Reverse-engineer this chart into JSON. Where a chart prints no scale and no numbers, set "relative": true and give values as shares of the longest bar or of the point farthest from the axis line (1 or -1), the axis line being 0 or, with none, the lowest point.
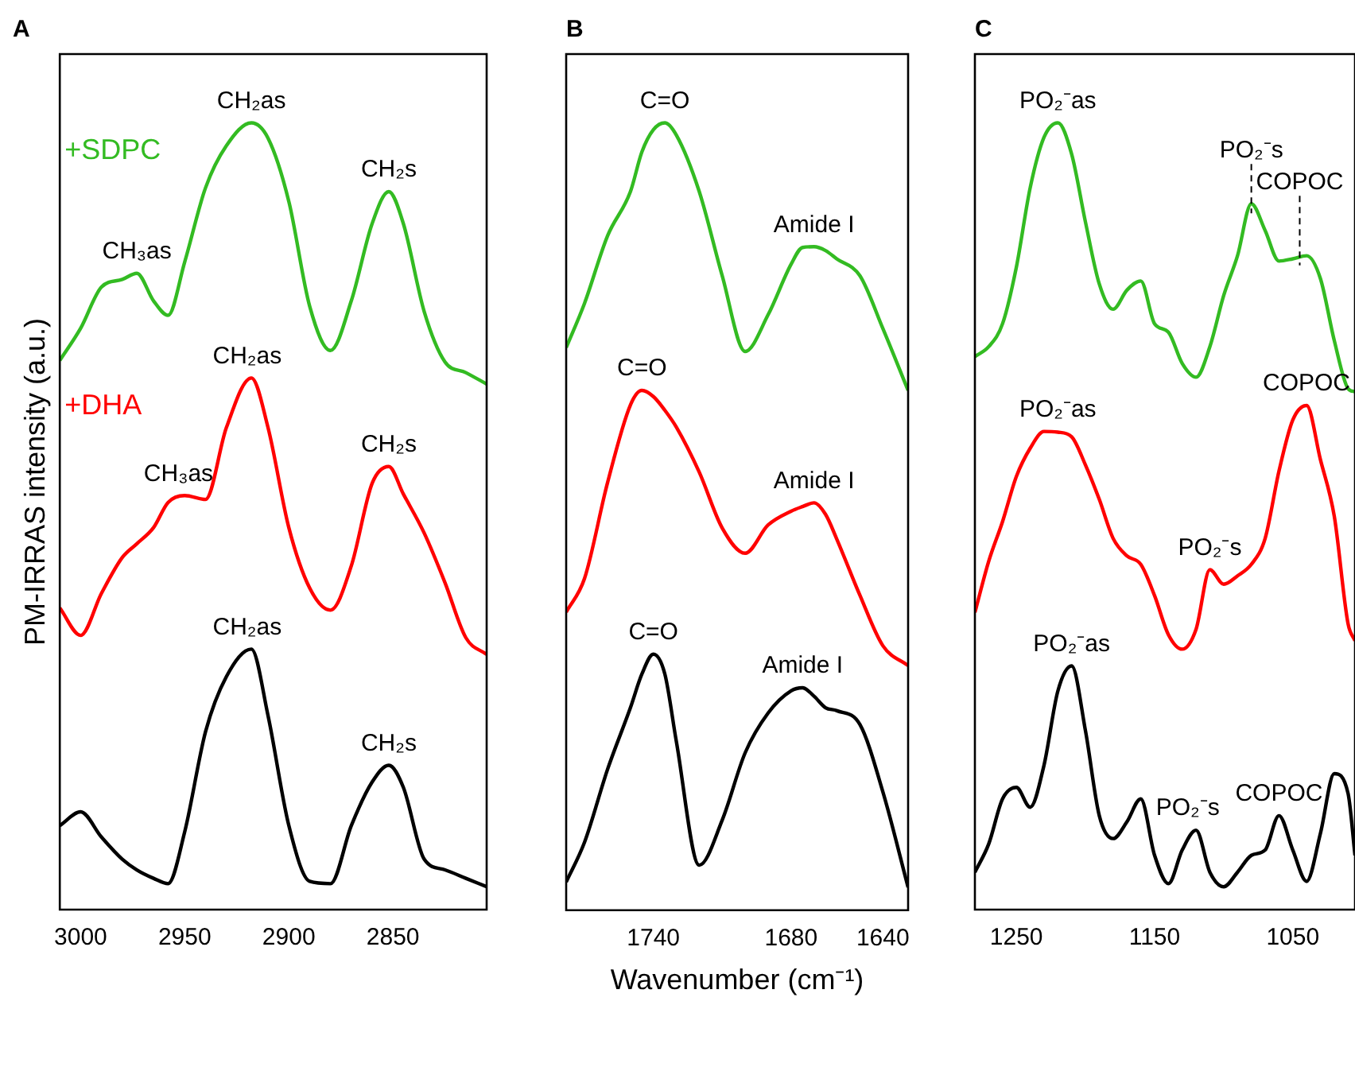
{
  "chart_data": [
    {
      "type": "line",
      "title": "A",
      "ylabel": "PM-IRRAS intensity (a.u.)",
      "relative": true,
      "xlim": [
        3010,
        2805
      ],
      "xticks": [
        3000,
        2950,
        2900,
        2850
      ],
      "x": [
        3010,
        3000,
        2990,
        2980,
        2973,
        2965,
        2958,
        2950,
        2940,
        2930,
        2918,
        2910,
        2900,
        2890,
        2880,
        2870,
        2860,
        2852,
        2845,
        2835,
        2825,
        2815,
        2805
      ],
      "series": [
        {
          "name": "+SDPC",
          "color": "#33bb22",
          "values": [
            0.689,
            0.731,
            0.785,
            0.795,
            0.803,
            0.767,
            0.748,
            0.818,
            0.915,
            0.97,
            1.0,
            0.98,
            0.897,
            0.76,
            0.702,
            0.767,
            0.868,
            0.91,
            0.868,
            0.753,
            0.687,
            0.673,
            0.658
          ]
        },
        {
          "name": "+DHA",
          "color": "#ff0000",
          "values": [
            0.365,
            0.329,
            0.384,
            0.431,
            0.449,
            0.47,
            0.503,
            0.512,
            0.507,
            0.601,
            0.666,
            0.601,
            0.47,
            0.391,
            0.362,
            0.42,
            0.528,
            0.55,
            0.514,
            0.463,
            0.398,
            0.326,
            0.304
          ]
        },
        {
          "color": "#000000",
          "values": [
            0.08,
            0.098,
            0.065,
            0.036,
            0.022,
            0.011,
            0.004,
            0.072,
            0.203,
            0.275,
            0.311,
            0.224,
            0.08,
            0.007,
            0.004,
            0.08,
            0.137,
            0.159,
            0.13,
            0.036,
            0.022,
            0.011,
            0
          ]
        }
      ],
      "annotations": [
        {
          "text": "CH₃as",
          "x": 2973,
          "y": 0.803
        },
        {
          "text": "CH₂as",
          "x": 2918,
          "y": 1.0
        },
        {
          "text": "CH₂s",
          "x": 2852,
          "y": 0.91
        },
        {
          "text": "CH₃as",
          "x": 2953,
          "y": 0.512
        },
        {
          "text": "CH₂as",
          "x": 2920,
          "y": 0.666
        },
        {
          "text": "CH₂s",
          "x": 2852,
          "y": 0.55
        },
        {
          "text": "CH₂as",
          "x": 2920,
          "y": 0.311
        },
        {
          "text": "CH₂s",
          "x": 2852,
          "y": 0.159
        }
      ]
    },
    {
      "type": "line",
      "title": "B",
      "xlabel": "Wavenumber (cm⁻¹)",
      "relative": true,
      "xlim": [
        1778,
        1629
      ],
      "xticks": [
        1740,
        1680,
        1640
      ],
      "x": [
        1778,
        1770,
        1760,
        1750,
        1745,
        1740,
        1735,
        1730,
        1720,
        1710,
        1700,
        1690,
        1680,
        1675,
        1670,
        1665,
        1660,
        1650,
        1640,
        1629
      ],
      "series": [
        {
          "color": "#33bb22",
          "values": [
            0.706,
            0.764,
            0.852,
            0.91,
            0.962,
            0.991,
            1.0,
            0.984,
            0.91,
            0.8,
            0.701,
            0.749,
            0.815,
            0.837,
            0.838,
            0.833,
            0.822,
            0.8,
            0.731,
            0.65
          ]
        },
        {
          "color": "#ff0000",
          "values": [
            0.36,
            0.404,
            0.529,
            0.631,
            0.65,
            0.642,
            0.624,
            0.602,
            0.543,
            0.47,
            0.437,
            0.474,
            0.492,
            0.498,
            0.503,
            0.488,
            0.455,
            0.382,
            0.316,
            0.29
          ]
        },
        {
          "color": "#000000",
          "values": [
            0.007,
            0.059,
            0.154,
            0.235,
            0.279,
            0.305,
            0.279,
            0.191,
            0.029,
            0.088,
            0.176,
            0.228,
            0.257,
            0.261,
            0.25,
            0.235,
            0.231,
            0.213,
            0.125,
            0
          ]
        }
      ],
      "annotations": [
        {
          "text": "C=O",
          "x": 1735,
          "y": 1.0
        },
        {
          "text": "Amide I",
          "x": 1670,
          "y": 0.838
        },
        {
          "text": "C=O",
          "x": 1745,
          "y": 0.65
        },
        {
          "text": "Amide I",
          "x": 1670,
          "y": 0.503
        },
        {
          "text": "C=O",
          "x": 1740,
          "y": 0.305
        },
        {
          "text": "Amide I",
          "x": 1675,
          "y": 0.261
        }
      ]
    },
    {
      "type": "line",
      "title": "C",
      "relative": true,
      "xlim": [
        1280,
        1005
      ],
      "xticks": [
        1250,
        1150,
        1050
      ],
      "x": [
        1280,
        1270,
        1260,
        1250,
        1240,
        1230,
        1220,
        1210,
        1200,
        1190,
        1180,
        1170,
        1160,
        1150,
        1140,
        1130,
        1120,
        1110,
        1100,
        1090,
        1080,
        1070,
        1060,
        1050,
        1040,
        1030,
        1020,
        1010,
        1005
      ],
      "series": [
        {
          "color": "#33bb22",
          "values": [
            0.694,
            0.707,
            0.737,
            0.811,
            0.915,
            0.981,
            1.0,
            0.959,
            0.87,
            0.789,
            0.756,
            0.781,
            0.793,
            0.737,
            0.726,
            0.685,
            0.667,
            0.707,
            0.774,
            0.826,
            0.894,
            0.859,
            0.819,
            0.822,
            0.826,
            0.796,
            0.715,
            0.652,
            0.648
          ]
        },
        {
          "color": "#ff0000",
          "values": [
            0.359,
            0.426,
            0.478,
            0.537,
            0.574,
            0.596,
            0.595,
            0.589,
            0.552,
            0.507,
            0.456,
            0.433,
            0.422,
            0.381,
            0.33,
            0.311,
            0.337,
            0.415,
            0.396,
            0.407,
            0.422,
            0.456,
            0.544,
            0.611,
            0.63,
            0.559,
            0.485,
            0.344,
            0.322
          ]
        },
        {
          "color": "#000000",
          "values": [
            0.019,
            0.056,
            0.115,
            0.13,
            0.104,
            0.159,
            0.256,
            0.289,
            0.204,
            0.093,
            0.063,
            0.085,
            0.115,
            0.041,
            0.004,
            0.048,
            0.074,
            0.019,
            0,
            0.019,
            0.041,
            0.048,
            0.093,
            0.048,
            0.007,
            0.07,
            0.148,
            0.122,
            0.041
          ]
        }
      ],
      "annotations": [
        {
          "text": "PO₂⁻as",
          "x": 1220,
          "y": 1.0
        },
        {
          "text": "COPOC",
          "x": 1045,
          "y": 0.826
        },
        {
          "text": "PO₂⁻s",
          "x": 1080,
          "y": 0.894
        },
        {
          "text": "PO₂⁻as",
          "x": 1220,
          "y": 0.596
        },
        {
          "text": "COPOC",
          "x": 1040,
          "y": 0.63
        },
        {
          "text": "PO₂⁻s",
          "x": 1110,
          "y": 0.415
        },
        {
          "text": "PO₂⁻as",
          "x": 1210,
          "y": 0.289
        },
        {
          "text": "PO₂⁻s",
          "x": 1126,
          "y": 0.074
        },
        {
          "text": "COPOC",
          "x": 1060,
          "y": 0.093
        }
      ]
    }
  ]
}
